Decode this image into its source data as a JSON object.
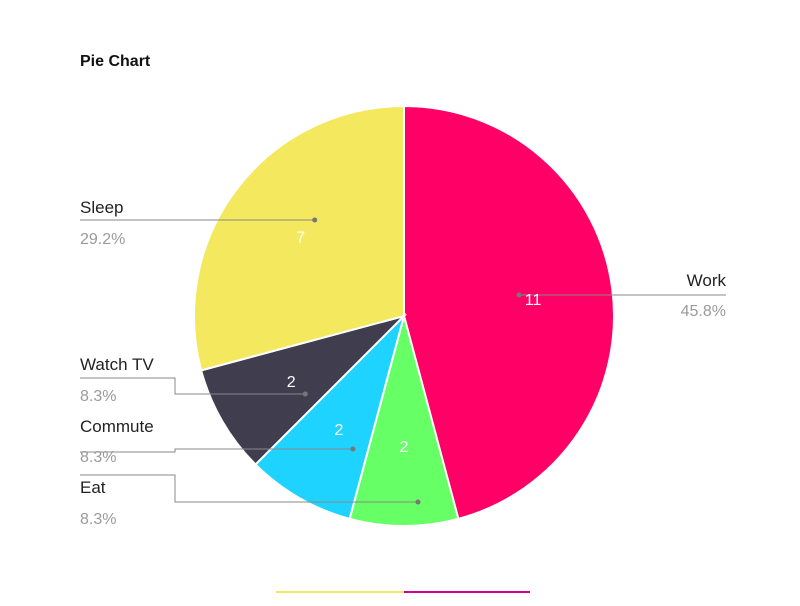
{
  "chart_data": {
    "type": "pie",
    "title": "Pie Chart",
    "slices": [
      {
        "label": "Work",
        "value": 11,
        "percent": "45.8%",
        "color": "#ff0066"
      },
      {
        "label": "Eat",
        "value": 2,
        "percent": "8.3%",
        "color": "#66ff66"
      },
      {
        "label": "Commute",
        "value": 2,
        "percent": "8.3%",
        "color": "#1ed3ff"
      },
      {
        "label": "Watch TV",
        "value": 2,
        "percent": "8.3%",
        "color": "#403d4f"
      },
      {
        "label": "Sleep",
        "value": 7,
        "percent": "29.2%",
        "color": "#f4e85f"
      }
    ],
    "start_angle": "12 o'clock",
    "direction": "clockwise",
    "labels": "outside with leader lines"
  }
}
